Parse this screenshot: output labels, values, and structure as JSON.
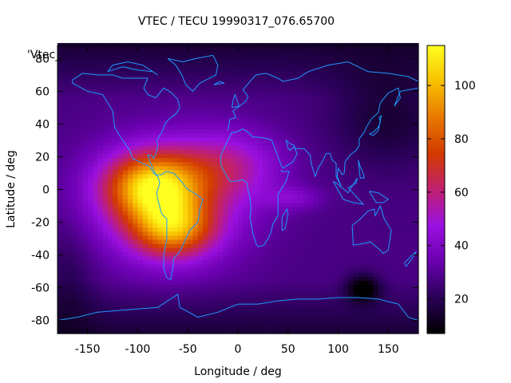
{
  "chart_data": {
    "type": "heatmap",
    "title": "VTEC / TECU 19990317_076.65700",
    "xlabel": "Longitude / deg",
    "ylabel": "Latitude / deg",
    "key_label": "'Vtec_",
    "xlim": [
      -180,
      180
    ],
    "ylim": [
      -88,
      88
    ],
    "x_ticks": [
      -150,
      -100,
      -50,
      0,
      50,
      100,
      150
    ],
    "y_ticks": [
      -80,
      -60,
      -40,
      -20,
      0,
      20,
      40,
      60,
      80
    ],
    "colorbar": {
      "label_ticks": [
        20,
        40,
        60,
        80,
        100
      ],
      "range": [
        7,
        115
      ],
      "palette": [
        "#000000",
        "#2a0058",
        "#6a00b0",
        "#9a10e0",
        "#c02070",
        "#d23a00",
        "#e87800",
        "#f8c000",
        "#ffff20"
      ]
    },
    "background_vtec": 27,
    "enhancements": [
      {
        "lon": -85,
        "lat": 2,
        "sigma_lon": 32,
        "sigma_lat": 14,
        "peak": 62
      },
      {
        "lon": -65,
        "lat": -24,
        "sigma_lon": 28,
        "sigma_lat": 12,
        "peak": 48
      },
      {
        "lon": -70,
        "lat": -8,
        "sigma_lon": 55,
        "sigma_lat": 26,
        "peak": 30
      },
      {
        "lon": -10,
        "lat": 15,
        "sigma_lon": 38,
        "sigma_lat": 15,
        "peak": 22
      },
      {
        "lon": 55,
        "lat": -5,
        "sigma_lon": 20,
        "sigma_lat": 5,
        "peak": 12
      }
    ],
    "depletions": [
      {
        "lon": 125,
        "lat": -60,
        "sigma_lon": 12,
        "sigma_lat": 6,
        "peak": 22
      },
      {
        "lon": 150,
        "lat": 45,
        "sigma_lon": 40,
        "sigma_lat": 22,
        "peak": 12
      },
      {
        "lon": -170,
        "lat": -55,
        "sigma_lon": 20,
        "sigma_lat": 25,
        "peak": 8
      }
    ]
  },
  "coastline_color": "#1e9bff"
}
